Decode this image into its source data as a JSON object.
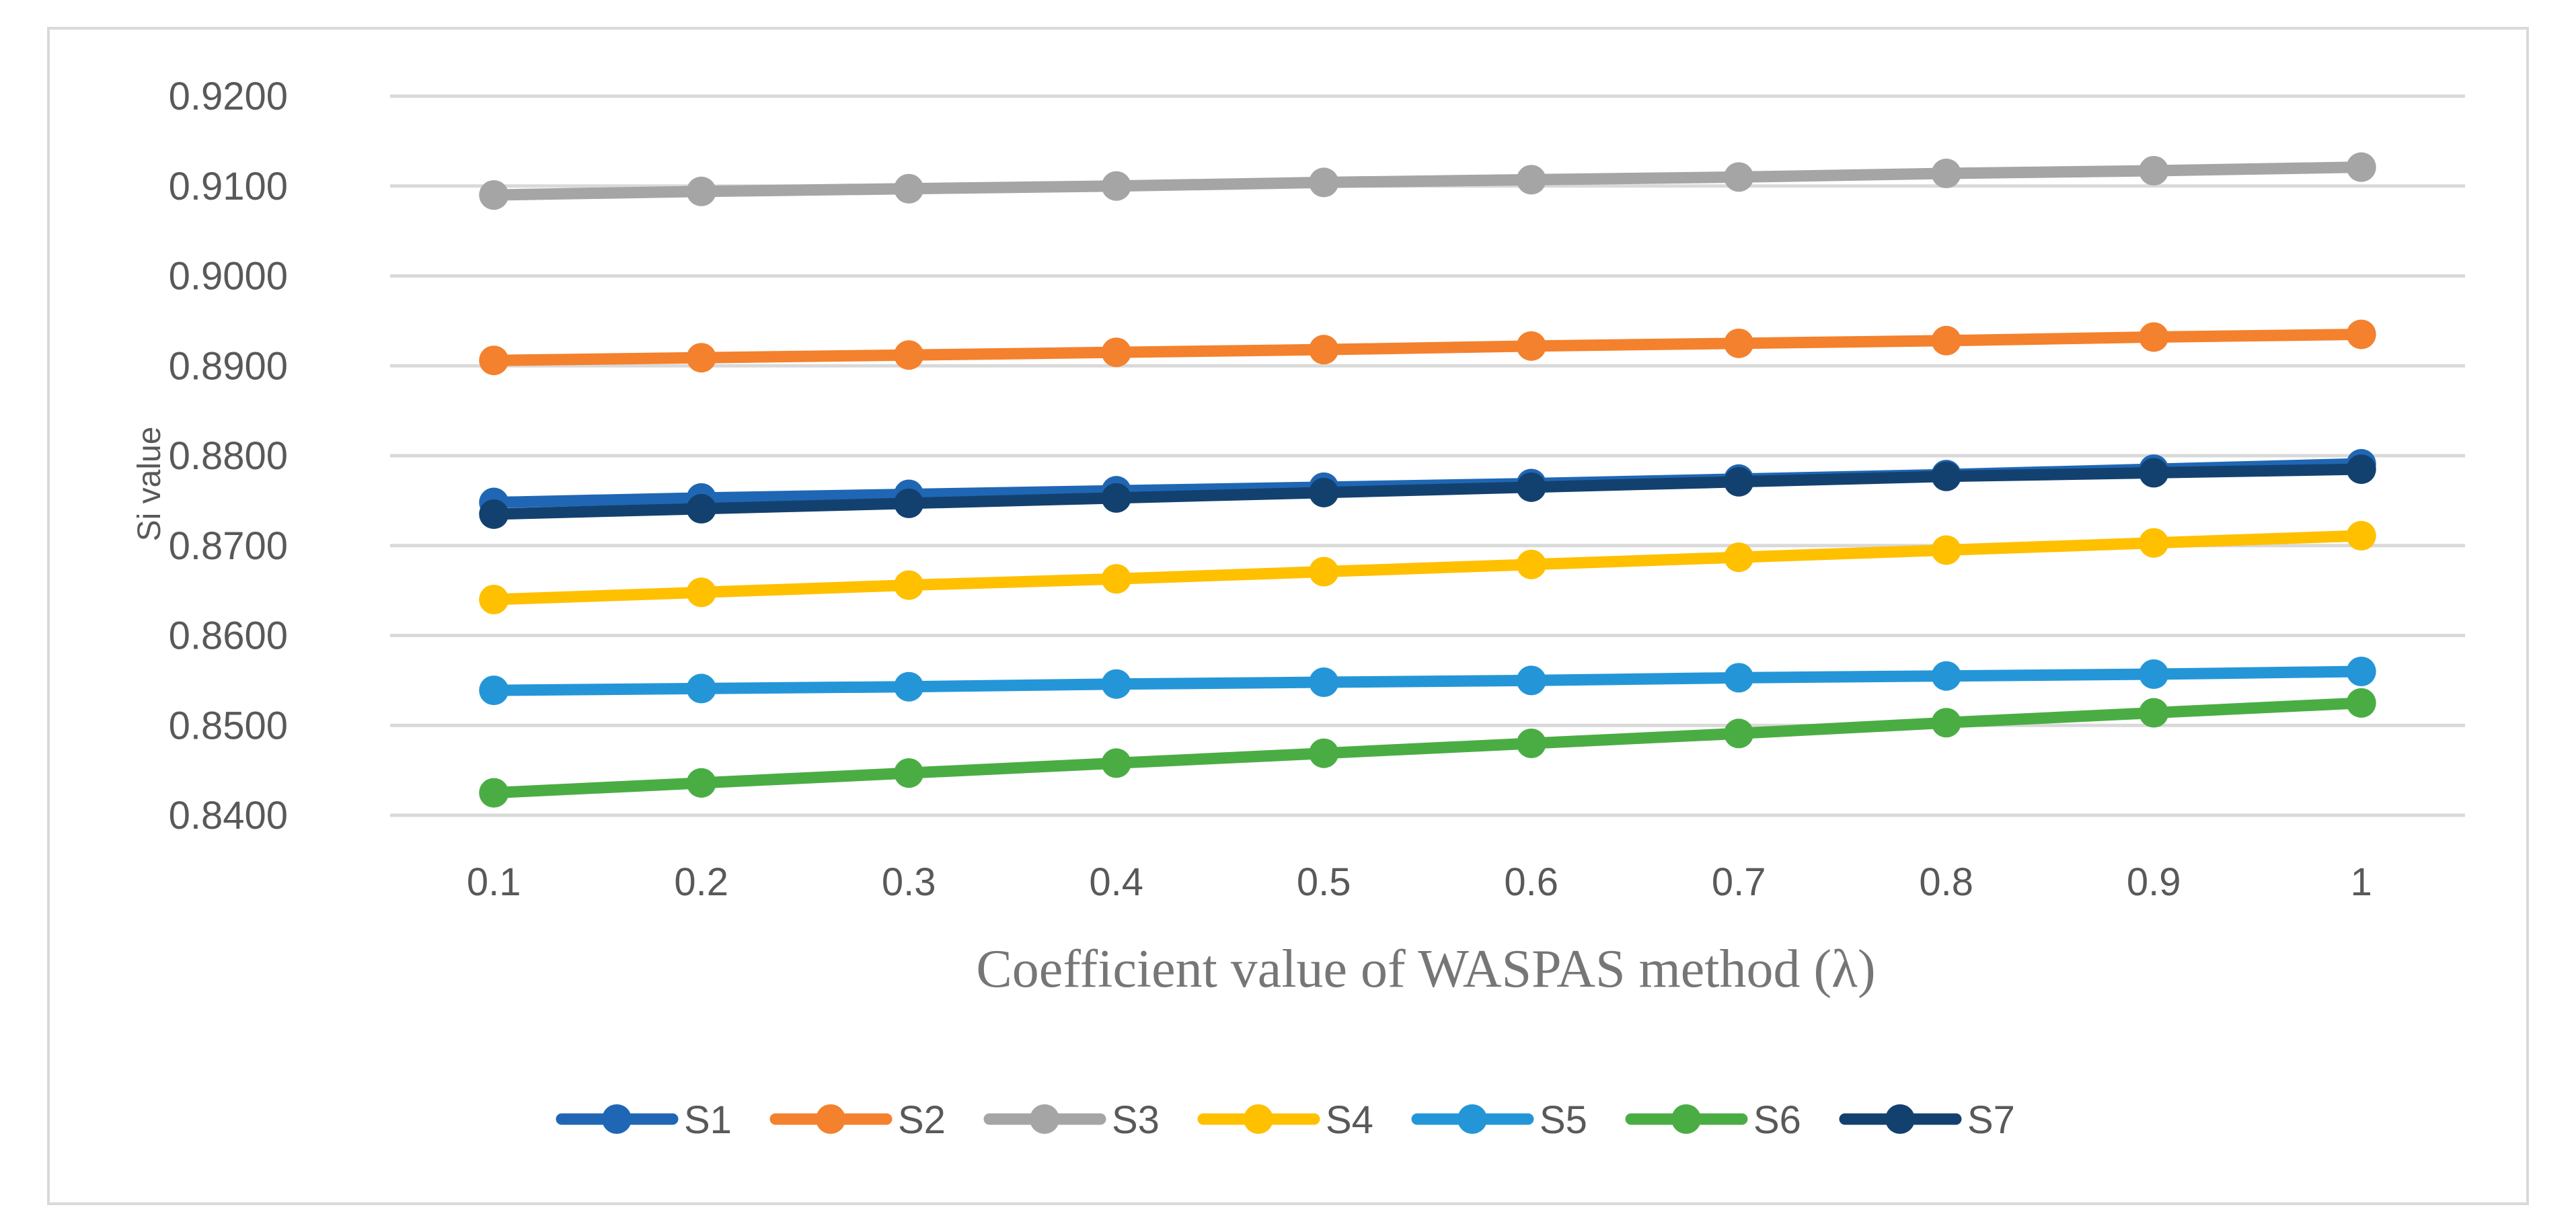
{
  "chart_data": {
    "type": "line",
    "title": "",
    "xlabel": "Coefficient value of WASPAS method (λ)",
    "ylabel": "Si value",
    "categories": [
      "0.1",
      "0.2",
      "0.3",
      "0.4",
      "0.5",
      "0.6",
      "0.7",
      "0.8",
      "0.9",
      "1"
    ],
    "ylim": [
      0.84,
      0.92
    ],
    "yticks": [
      "0.8400",
      "0.8500",
      "0.8600",
      "0.8700",
      "0.8800",
      "0.8900",
      "0.9000",
      "0.9100",
      "0.9200"
    ],
    "grid": true,
    "legend_position": "bottom",
    "series": [
      {
        "name": "S1",
        "color": "#1f67b4",
        "values": [
          0.8748,
          0.8753,
          0.8757,
          0.8761,
          0.8765,
          0.8769,
          0.8774,
          0.8779,
          0.8785,
          0.8791
        ]
      },
      {
        "name": "S2",
        "color": "#f4812d",
        "values": [
          0.8906,
          0.8909,
          0.8912,
          0.8915,
          0.8918,
          0.8922,
          0.8925,
          0.8928,
          0.8932,
          0.8935
        ]
      },
      {
        "name": "S3",
        "color": "#a5a5a5",
        "values": [
          0.909,
          0.9094,
          0.9097,
          0.91,
          0.9104,
          0.9107,
          0.911,
          0.9114,
          0.9117,
          0.9121
        ]
      },
      {
        "name": "S4",
        "color": "#ffc000",
        "values": [
          0.864,
          0.8648,
          0.8656,
          0.8663,
          0.8671,
          0.8679,
          0.8687,
          0.8695,
          0.8703,
          0.8711
        ]
      },
      {
        "name": "S5",
        "color": "#2496d8",
        "values": [
          0.8539,
          0.8541,
          0.8543,
          0.8546,
          0.8548,
          0.855,
          0.8553,
          0.8555,
          0.8557,
          0.856
        ]
      },
      {
        "name": "S6",
        "color": "#4aad44",
        "values": [
          0.8425,
          0.8436,
          0.8447,
          0.8458,
          0.8469,
          0.848,
          0.8491,
          0.8503,
          0.8514,
          0.8525
        ]
      },
      {
        "name": "S7",
        "color": "#13416f",
        "values": [
          0.8735,
          0.8741,
          0.8747,
          0.8753,
          0.8759,
          0.8765,
          0.8771,
          0.8777,
          0.8781,
          0.8785
        ]
      }
    ]
  }
}
